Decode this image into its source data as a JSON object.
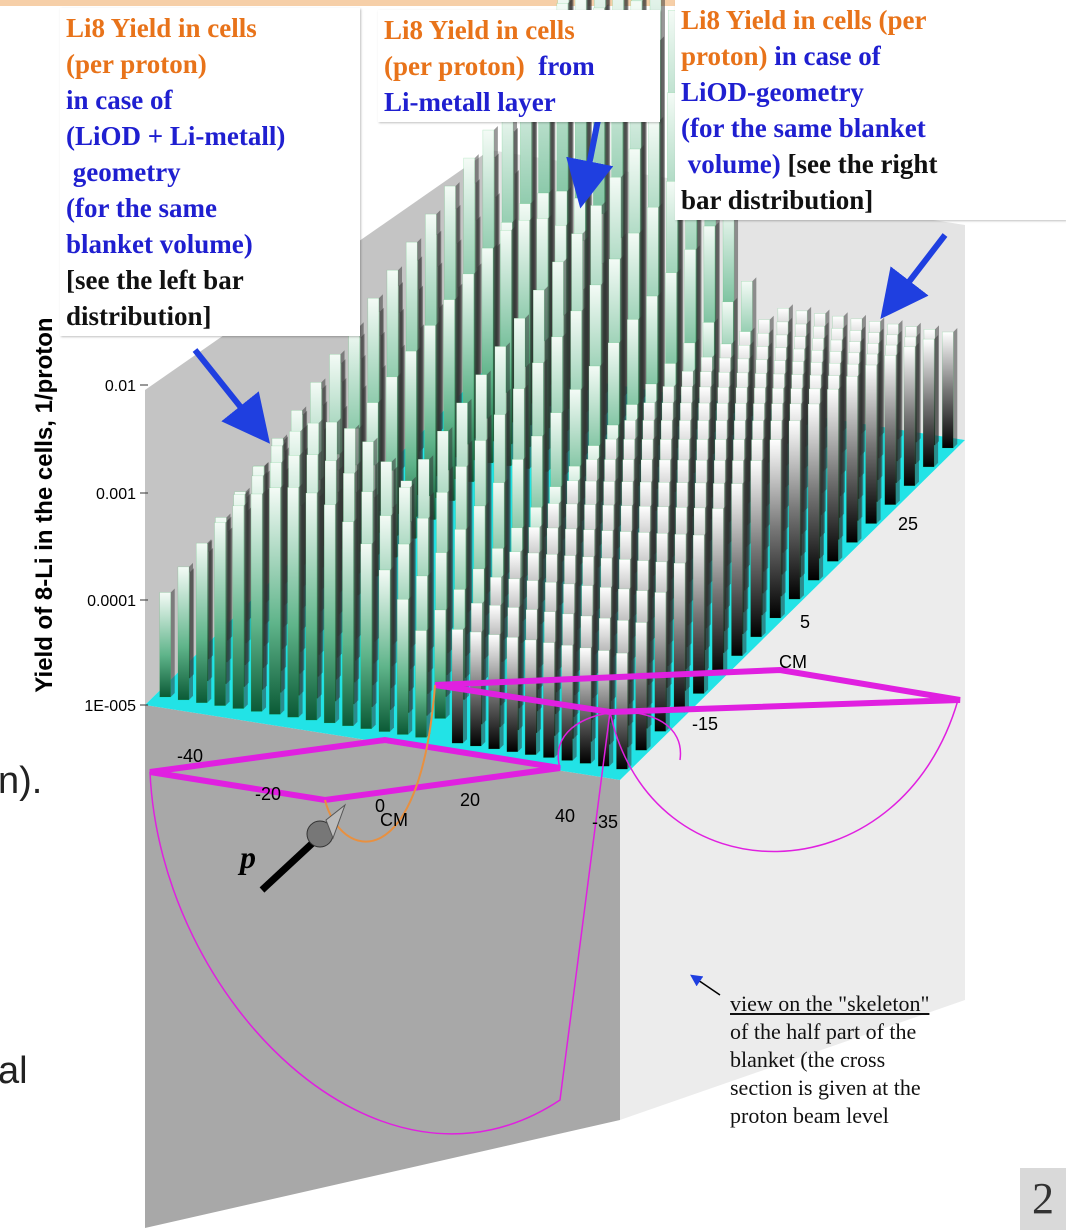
{
  "annotations": [
    {
      "lines": [
        [
          {
            "text": "Li8 Yield in cells",
            "color": "#e8731a"
          }
        ],
        [
          {
            "text": "(per proton)",
            "color": "#e8731a"
          }
        ],
        [
          {
            "text": "in case of",
            "color": "#1f1fd0"
          }
        ],
        [
          {
            "text": "(LiOD + Li-metall)",
            "color": "#1f1fd0"
          }
        ],
        [
          {
            "text": " geometry",
            "color": "#1f1fd0"
          }
        ],
        [
          {
            "text": "(for the same",
            "color": "#1f1fd0"
          }
        ],
        [
          {
            "text": "blanket volume)",
            "color": "#1f1fd0"
          }
        ],
        [
          {
            "text": "[see the left bar",
            "color": "#111111"
          }
        ],
        [
          {
            "text": "distribution]",
            "color": "#111111"
          }
        ]
      ]
    },
    {
      "lines": [
        [
          {
            "text": "Li8 Yield in cells",
            "color": "#e8731a"
          }
        ],
        [
          {
            "text": "(per proton)",
            "color": "#e8731a"
          },
          {
            "text": "  from",
            "color": "#1f1fd0"
          }
        ],
        [
          {
            "text": "Li-metall layer",
            "color": "#1f1fd0"
          }
        ]
      ]
    },
    {
      "lines": [
        [
          {
            "text": "Li8 Yield in cells (per",
            "color": "#e8731a"
          }
        ],
        [
          {
            "text": "proton)",
            "color": "#e8731a"
          },
          {
            "text": " in case of",
            "color": "#1f1fd0"
          }
        ],
        [
          {
            "text": "LiOD-geometry",
            "color": "#1f1fd0"
          }
        ],
        [
          {
            "text": "(for the same blanket",
            "color": "#1f1fd0"
          }
        ],
        [
          {
            "text": " volume)",
            "color": "#1f1fd0"
          },
          {
            "text": " [see the right",
            "color": "#111111"
          }
        ],
        [
          {
            "text": "bar distribution]",
            "color": "#111111"
          }
        ]
      ]
    }
  ],
  "y_axis": {
    "label": "Yield of 8-Li in the cells, 1/proton",
    "ticks": [
      "0.01",
      "0.001",
      "0.0001",
      "1E-005"
    ]
  },
  "x_axis": {
    "label": "CM",
    "ticks": [
      "-40",
      "-20",
      "0",
      "20",
      "40"
    ]
  },
  "z_axis": {
    "label": "CM",
    "ticks": [
      "-35",
      "-15",
      "5",
      "25"
    ]
  },
  "beam_label": "p",
  "skeleton_note": [
    "view on the \"skeleton\"",
    "of the half part of the",
    "blanket (the cross",
    "section is given at the",
    "proton beam level"
  ],
  "side_text": [
    "n).",
    "al"
  ],
  "slide_number": "2"
}
